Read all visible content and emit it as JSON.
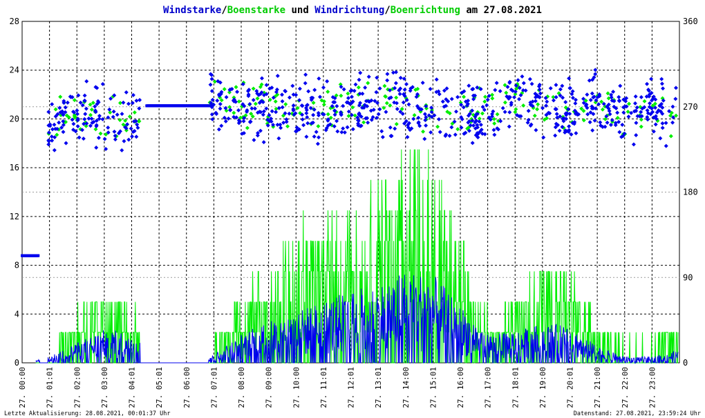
{
  "colors": {
    "wind": "#0000ee",
    "gust": "#00ee00",
    "grid": "#000000",
    "grid_minor": "#999999",
    "text": "#000000"
  },
  "chart_data": {
    "type": "line",
    "title_parts": [
      {
        "text": "Windstarke",
        "color": "#0000cc"
      },
      {
        "text": "/",
        "color": "#000000"
      },
      {
        "text": "Boenstarke",
        "color": "#00cc00"
      },
      {
        "text": " und ",
        "color": "#000000"
      },
      {
        "text": "Windrichtung",
        "color": "#0000cc"
      },
      {
        "text": "/",
        "color": "#000000"
      },
      {
        "text": "Boenrichtung",
        "color": "#00cc00"
      },
      {
        "text": " am 27.08.2021",
        "color": "#000000"
      }
    ],
    "x_range": [
      0,
      24
    ],
    "y_left_range": [
      0,
      28
    ],
    "y_left_ticks": [
      "0",
      "4",
      "8",
      "12",
      "16",
      "20",
      "24",
      "28"
    ],
    "y_right_range": [
      0,
      360
    ],
    "y_right_ticks": [
      "0",
      "90",
      "180",
      "270",
      "360"
    ],
    "x_tick_labels": [
      "27. 00:00",
      "27. 01:01",
      "27. 02:00",
      "27. 03:00",
      "27. 04:01",
      "27. 05:01",
      "27. 06:00",
      "27. 07:01",
      "27. 08:00",
      "27. 09:00",
      "27. 10:00",
      "27. 11:01",
      "27. 12:01",
      "27. 13:01",
      "27. 14:00",
      "27. 15:01",
      "27. 16:00",
      "27. 17:00",
      "27. 18:01",
      "27. 19:00",
      "27. 20:01",
      "27. 21:00",
      "27. 22:00",
      "27. 23:00"
    ],
    "grid": true,
    "series": [
      {
        "name": "Windstarke",
        "axis": "left",
        "style": "line",
        "hourly_profile": [
          0.0,
          0.3,
          1.0,
          1.6,
          1.5,
          0.0,
          0.0,
          0.4,
          1.4,
          2.0,
          2.5,
          3.0,
          3.5,
          3.8,
          4.5,
          4.3,
          2.8,
          1.4,
          1.5,
          1.9,
          1.8,
          0.8,
          0.3,
          0.3,
          0.6
        ]
      },
      {
        "name": "Boenstarke",
        "axis": "left",
        "style": "line",
        "hourly_profile": [
          0.0,
          0.5,
          3.0,
          4.5,
          3.5,
          0.0,
          0.0,
          1.0,
          4.0,
          5.5,
          8.0,
          8.5,
          9.5,
          11.0,
          13.0,
          12.0,
          7.0,
          3.0,
          4.0,
          6.0,
          5.5,
          2.5,
          1.0,
          1.0,
          2.5
        ]
      },
      {
        "name": "Windrichtung",
        "axis": "right",
        "style": "points",
        "hourly_center_deg": [
          113,
          255,
          262,
          258,
          255,
          271,
          271,
          270,
          268,
          272,
          270,
          268,
          272,
          275,
          270,
          262,
          262,
          265,
          275,
          272,
          265,
          280,
          262,
          272,
          255
        ],
        "scatter_deg": 25
      },
      {
        "name": "Boenrichtung",
        "axis": "right",
        "style": "points",
        "hourly_center_deg": [
          113,
          255,
          262,
          258,
          255,
          271,
          271,
          270,
          268,
          272,
          270,
          268,
          272,
          275,
          270,
          262,
          262,
          265,
          275,
          272,
          265,
          280,
          262,
          272,
          255
        ],
        "scatter_deg": 18
      }
    ]
  },
  "footer": {
    "left": "Letzte Aktualisierung: 28.08.2021, 00:01:37 Uhr",
    "right": "Datenstand: 27.08.2021, 23:59:24 Uhr"
  }
}
